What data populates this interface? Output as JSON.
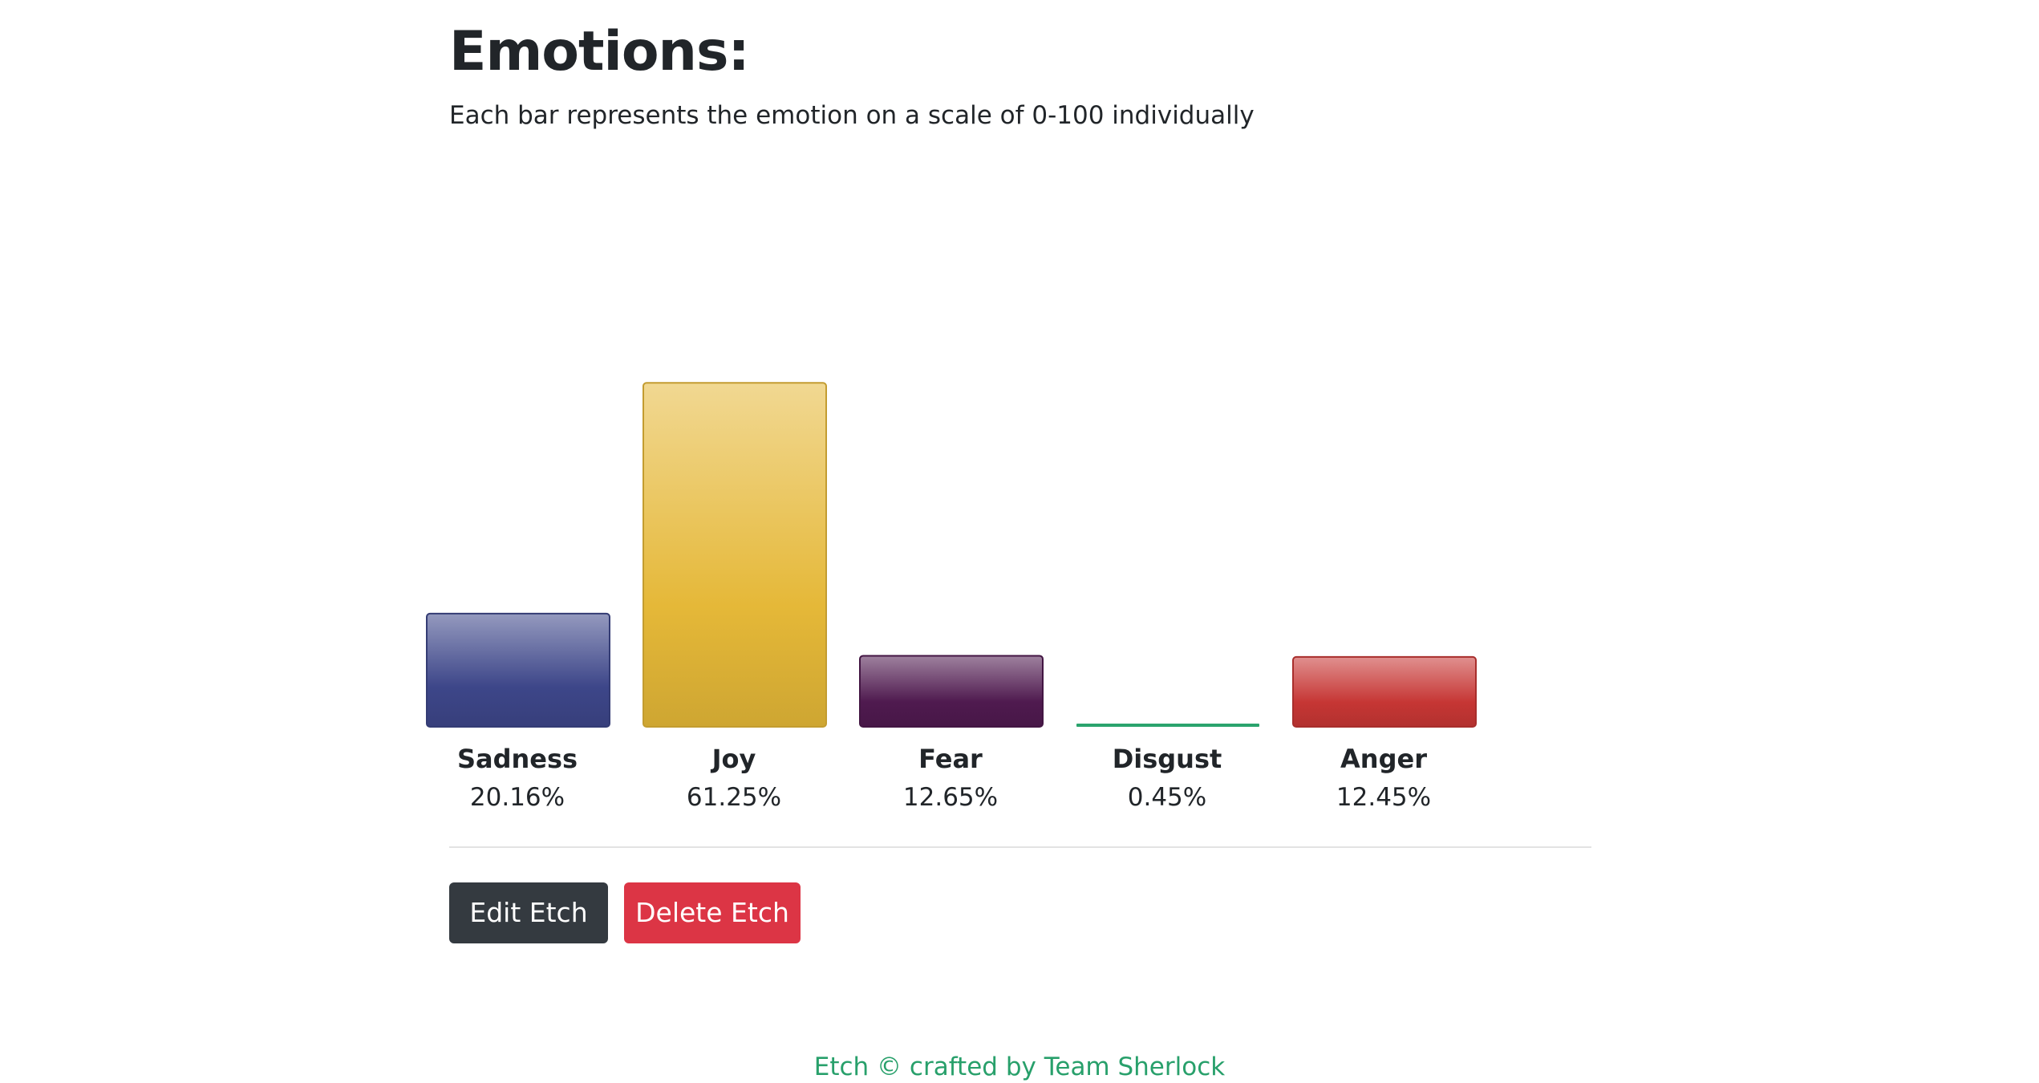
{
  "heading": "Emotions:",
  "subtitle": "Each bar represents the emotion on a scale of 0-100 individually",
  "chart_data": {
    "type": "bar",
    "categories": [
      "Sadness",
      "Joy",
      "Fear",
      "Disgust",
      "Anger"
    ],
    "values": [
      20.16,
      61.25,
      12.65,
      0.45,
      12.45
    ],
    "value_labels": [
      "20.16%",
      "61.25%",
      "12.65%",
      "0.45%",
      "12.45%"
    ],
    "ylim": [
      0,
      100
    ],
    "colors": [
      "#3d4689",
      "#e5b838",
      "#4f1a4f",
      "#2aa36d",
      "#c63634"
    ],
    "grid": false,
    "legend": "none"
  },
  "actions": {
    "edit_label": "Edit Etch",
    "delete_label": "Delete Etch"
  },
  "footer": {
    "text": "Etch © crafted by Team Sherlock"
  }
}
